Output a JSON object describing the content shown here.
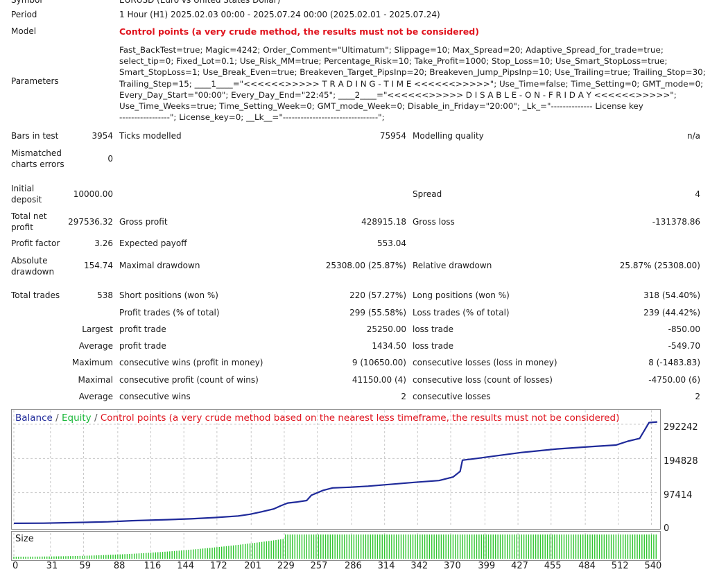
{
  "report": {
    "symbol_label": "Symbol",
    "symbol_value": "EURUSD (Euro vs United States Dollar)",
    "period_label": "Period",
    "period_value": "1 Hour (H1) 2025.02.03 00:00 - 2025.07.24 00:00 (2025.02.01 - 2025.07.24)",
    "model_label": "Model",
    "model_value": "Control points (a very crude method, the results must not be considered)",
    "parameters_label": "Parameters",
    "parameters_value": "Fast_BackTest=true; Magic=4242; Order_Comment=\"Ultimatum\"; Slippage=10; Max_Spread=20; Adaptive_Spread_for_trade=true;\nselect_tip=0; Fixed_Lot=0.1; Use_Risk_MM=true; Percentage_Risk=10; Take_Profit=1000; Stop_Loss=10; Use_Smart_StopLoss=true;\nSmart_StopLoss=1; Use_Break_Even=true; Breakeven_Target_PipsInp=20; Breakeven_Jump_PipsInp=10; Use_Trailing=true; Trailing_Stop=30;\nTrailing_Step=15; ____1____=\"<<<<<<>>>>> T R A D I N G - T I M E <<<<<<>>>>>\"; Use_Time=false; Time_Setting=0; GMT_mode=0;\nEvery_Day_Start=\"00:00\"; Every_Day_End=\"22:45\"; ____2____=\"<<<<<<>>>>> D I S A B L E - O N - F R I D A Y <<<<<<>>>>>\";\nUse_Time_Weeks=true; Time_Setting_Week=0; GMT_mode_Week=0; Disable_in_Friday=\"20:00\"; _Lk_=\"-------------- License key\n-----------------\"; License_key=0; __Lk__=\"--------------------------------\";",
    "bars_label": "Bars in test",
    "bars_value": "3954",
    "ticks_label": "Ticks modelled",
    "ticks_value": "75954",
    "mq_label": "Modelling quality",
    "mq_value": "n/a",
    "mismatch_label_1": "Mismatched",
    "mismatch_label_2": "charts errors",
    "mismatch_value": "0",
    "deposit_label_1": "Initial",
    "deposit_label_2": "deposit",
    "deposit_value": "10000.00",
    "spread_label": "Spread",
    "spread_value": "4",
    "tnp_label_1": "Total net",
    "tnp_label_2": "profit",
    "tnp_value": "297536.32",
    "gp_label": "Gross profit",
    "gp_value": "428915.18",
    "gl_label": "Gross loss",
    "gl_value": "-131378.86",
    "pf_label": "Profit factor",
    "pf_value": "3.26",
    "ep_label": "Expected payoff",
    "ep_value": "553.04",
    "ad_label_1": "Absolute",
    "ad_label_2": "drawdown",
    "ad_value": "154.74",
    "md_label": "Maximal drawdown",
    "md_value": "25308.00 (25.87%)",
    "rd_label": "Relative drawdown",
    "rd_value": "25.87% (25308.00)",
    "tt_label": "Total trades",
    "tt_value": "538",
    "sp_label": "Short positions (won %)",
    "sp_value": "220 (57.27%)",
    "lp_label": "Long positions (won %)",
    "lp_value": "318 (54.40%)",
    "pt_label": "Profit trades (% of total)",
    "pt_value": "299 (55.58%)",
    "lt_label": "Loss trades (% of total)",
    "lt_value": "239 (44.42%)",
    "largest_label": "Largest",
    "largest_pt_label": "profit trade",
    "largest_pt_value": "25250.00",
    "largest_lt_label": "loss trade",
    "largest_lt_value": "-850.00",
    "average_label": "Average",
    "average_pt_label": "profit trade",
    "average_pt_value": "1434.50",
    "average_lt_label": "loss trade",
    "average_lt_value": "-549.70",
    "maximum_label": "Maximum",
    "max_cw_label": "consecutive wins (profit in money)",
    "max_cw_value": "9 (10650.00)",
    "max_cl_label": "consecutive losses (loss in money)",
    "max_cl_value": "8 (-1483.83)",
    "maximal_label": "Maximal",
    "mx_cp_label": "consecutive profit (count of wins)",
    "mx_cp_value": "41150.00 (4)",
    "mx_cl_label": "consecutive loss (count of losses)",
    "mx_cl_value": "-4750.00 (6)",
    "avg2_label": "Average",
    "avg_cw_label": "consecutive wins",
    "avg_cw_value": "2",
    "avg_cl_label": "consecutive losses",
    "avg_cl_value": "2"
  },
  "chart_data": {
    "type": "line",
    "legend": {
      "balance": "Balance",
      "sep1": " / ",
      "equity": "Equity",
      "sep2": " / ",
      "note": "Control points (a very crude method based on the nearest less timeframe, the results must not be considered)"
    },
    "colors": {
      "balance": "#1f2a9a",
      "equity": "#1bb83a",
      "note": "#e0141e",
      "size": "#2ec62e",
      "grid": "#c8c8c8"
    },
    "y_ticks": [
      "292242",
      "194828",
      "97414",
      "0"
    ],
    "ylim": [
      0,
      316000
    ],
    "xlim": [
      0,
      545
    ],
    "x_ticks": [
      "0",
      "31",
      "59",
      "88",
      "116",
      "144",
      "172",
      "201",
      "229",
      "257",
      "286",
      "314",
      "342",
      "370",
      "399",
      "427",
      "455",
      "484",
      "512",
      "540"
    ],
    "series": [
      {
        "name": "Balance",
        "x": [
          0,
          25,
          50,
          80,
          100,
          130,
          150,
          170,
          190,
          200,
          210,
          220,
          226,
          232,
          240,
          248,
          252,
          262,
          270,
          285,
          300,
          315,
          340,
          360,
          372,
          378,
          380,
          392,
          410,
          430,
          460,
          490,
          510,
          520,
          530,
          538,
          545
        ],
        "y": [
          10000,
          10500,
          12000,
          14500,
          17500,
          20500,
          23000,
          26500,
          31000,
          36000,
          43000,
          51000,
          60000,
          68000,
          71000,
          75000,
          90000,
          104000,
          111000,
          113000,
          116000,
          120000,
          127000,
          132000,
          142000,
          158000,
          190000,
          195000,
          203000,
          212000,
          222000,
          229000,
          233000,
          244000,
          252000,
          297000,
          299000
        ]
      }
    ],
    "size_panel": {
      "label": "Size"
    }
  }
}
